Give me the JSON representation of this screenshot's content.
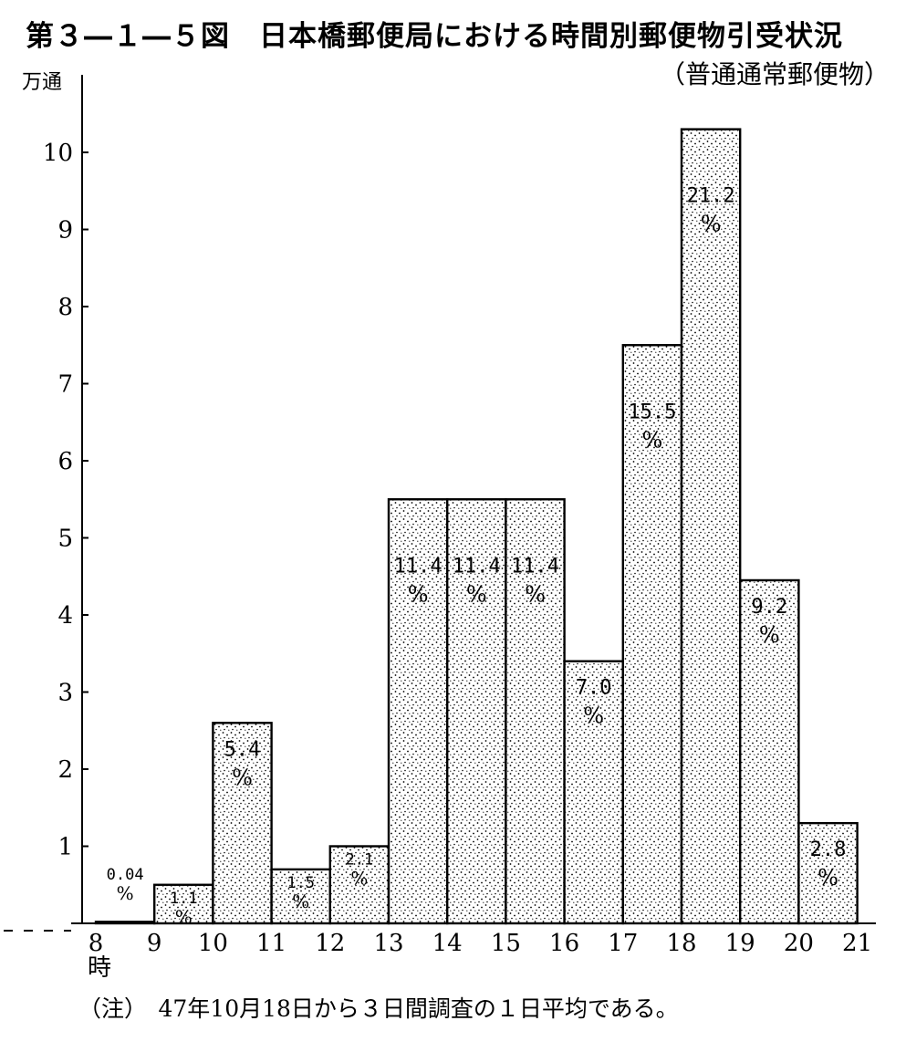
{
  "figure": {
    "title": "第３―１―５図　日本橋郵便局における時間別郵便物引受状況",
    "subtitle": "（普通通常郵便物）",
    "y_unit": "万通",
    "x_unit_suffix": "時",
    "note": "（注）　47年10月18日から３日間調査の１日平均である。"
  },
  "chart_data": {
    "type": "bar",
    "title": "日本橋郵便局における時間別郵便物引受状況",
    "subtitle": "（普通通常郵便物）",
    "ylabel": "万通",
    "xlabel": "時",
    "ylim": [
      0,
      10.5
    ],
    "yticks": [
      "1",
      "2",
      "3",
      "4",
      "5",
      "6",
      "7",
      "8",
      "9",
      "10"
    ],
    "x_edges": [
      "8",
      "9",
      "10",
      "11",
      "12",
      "13",
      "14",
      "15",
      "16",
      "17",
      "18",
      "19",
      "20",
      "21"
    ],
    "categories": [
      "8-9",
      "9-10",
      "10-11",
      "11-12",
      "12-13",
      "13-14",
      "14-15",
      "15-16",
      "16-17",
      "17-18",
      "18-19",
      "19-20",
      "20-21"
    ],
    "values": [
      0.02,
      0.5,
      2.6,
      0.7,
      1.0,
      5.5,
      5.5,
      5.5,
      3.4,
      7.5,
      10.3,
      4.45,
      1.3
    ],
    "percent_labels": [
      "0.04",
      "1.1",
      "5.4",
      "1.5",
      "2.1",
      "11.4",
      "11.4",
      "11.4",
      "7.0",
      "15.5",
      "21.2",
      "9.2",
      "2.8"
    ],
    "percent_sign": "%",
    "colors": {
      "bar_fill": "#ffffff",
      "dots": "#000000",
      "stroke": "#000000"
    }
  }
}
